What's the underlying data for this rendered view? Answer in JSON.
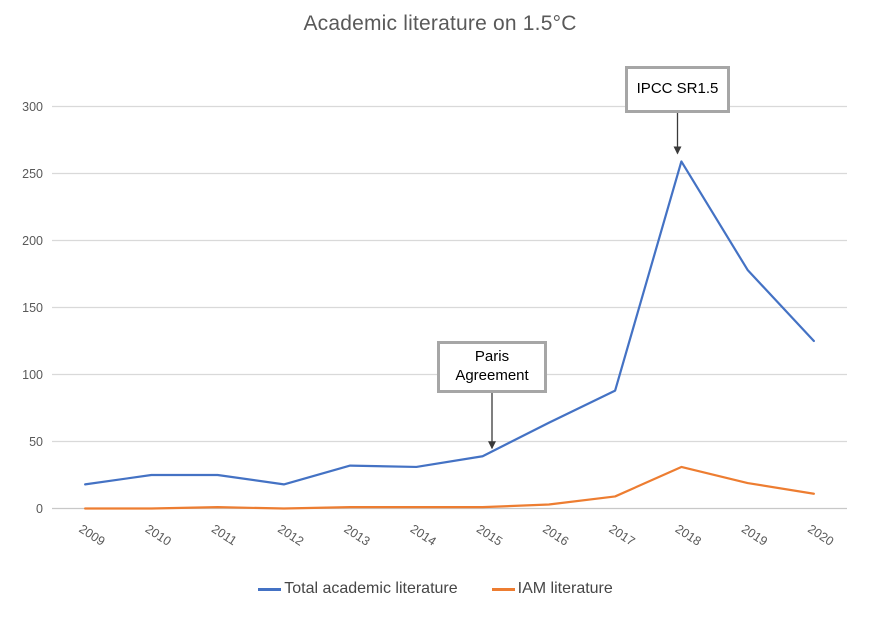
{
  "title": "Academic literature on 1.5°C",
  "chart_data": {
    "type": "line",
    "title": "Academic literature on 1.5°C",
    "categories": [
      "2009",
      "2010",
      "2011",
      "2012",
      "2013",
      "2014",
      "2015",
      "2016",
      "2017",
      "2018",
      "2019",
      "2020"
    ],
    "series": [
      {
        "name": "Total academic literature",
        "color": "#4472C4",
        "values": [
          18,
          25,
          25,
          18,
          32,
          31,
          39,
          64,
          88,
          259,
          178,
          125
        ]
      },
      {
        "name": "IAM literature",
        "color": "#ED7D31",
        "values": [
          0,
          0,
          1,
          0,
          1,
          1,
          1,
          3,
          9,
          31,
          19,
          11
        ]
      }
    ],
    "xlabel": "",
    "ylabel": "",
    "ylim": [
      0,
      300
    ],
    "yticks": [
      0,
      50,
      100,
      150,
      200,
      250,
      300
    ],
    "grid": true,
    "legend_position": "bottom",
    "annotations": [
      {
        "label": "Paris Agreement",
        "category": "2015",
        "series": "Total academic literature"
      },
      {
        "label": "IPCC SR1.5",
        "category": "2018",
        "series": "Total academic literature"
      }
    ]
  },
  "colors": {
    "background": "#FFFFFF",
    "gridline": "#D9D9D9",
    "axis_line": "#C8C8C8",
    "title_text": "#595959",
    "tick_text": "#595959",
    "legend_text": "#464646",
    "annotation_border": "#A6A6A6",
    "annotation_text": "#000000",
    "arrow": "#3A3A3A",
    "series_blue": "#4472C4",
    "series_orange": "#ED7D31"
  }
}
